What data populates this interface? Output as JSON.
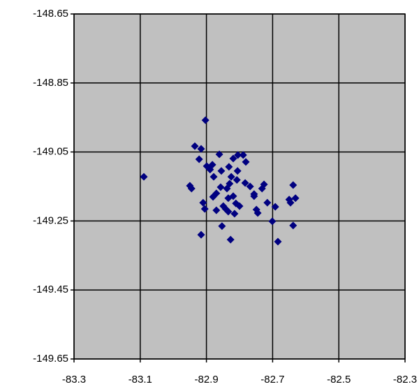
{
  "chart_data": {
    "type": "scatter",
    "x": [
      -82.903,
      -83.089,
      -82.935,
      -82.916,
      -82.922,
      -82.899,
      -82.889,
      -82.882,
      -82.861,
      -82.855,
      -82.878,
      -82.832,
      -82.819,
      -82.805,
      -82.789,
      -82.781,
      -82.806,
      -82.825,
      -82.83,
      -82.857,
      -82.87,
      -82.838,
      -82.808,
      -82.783,
      -82.768,
      -82.756,
      -82.726,
      -82.732,
      -82.95,
      -82.945,
      -82.91,
      -82.905,
      -82.87,
      -82.849,
      -82.834,
      -82.842,
      -82.811,
      -82.819,
      -82.8,
      -82.815,
      -82.749,
      -82.745,
      -82.716,
      -82.692,
      -82.701,
      -82.853,
      -82.827,
      -82.916,
      -82.684,
      -82.638,
      -82.638,
      -82.631,
      -82.646,
      -82.65,
      -82.756,
      -82.834,
      -82.88
    ],
    "y": [
      -148.958,
      -149.122,
      -149.033,
      -149.041,
      -149.071,
      -149.091,
      -149.101,
      -149.087,
      -149.057,
      -149.105,
      -149.122,
      -149.093,
      -149.069,
      -149.059,
      -149.059,
      -149.079,
      -149.105,
      -149.122,
      -149.142,
      -149.152,
      -149.17,
      -149.156,
      -149.131,
      -149.14,
      -149.15,
      -149.172,
      -149.144,
      -149.156,
      -149.148,
      -149.156,
      -149.197,
      -149.215,
      -149.219,
      -149.207,
      -149.223,
      -149.215,
      -149.199,
      -149.178,
      -149.207,
      -149.229,
      -149.217,
      -149.227,
      -149.197,
      -149.209,
      -149.251,
      -149.265,
      -149.304,
      -149.29,
      -149.31,
      -149.263,
      -149.146,
      -149.184,
      -149.197,
      -149.188,
      -149.178,
      -149.184,
      -149.18
    ],
    "color": "#000080",
    "xlim": [
      -83.3,
      -82.3
    ],
    "xticks": [
      -83.3,
      -83.1,
      -82.9,
      -82.7,
      -82.5,
      -82.3
    ],
    "ylim": [
      -149.65,
      -148.65
    ],
    "yticks": [
      -149.65,
      -149.45,
      -149.25,
      -149.05,
      -148.85,
      -148.65
    ],
    "grid": true
  }
}
